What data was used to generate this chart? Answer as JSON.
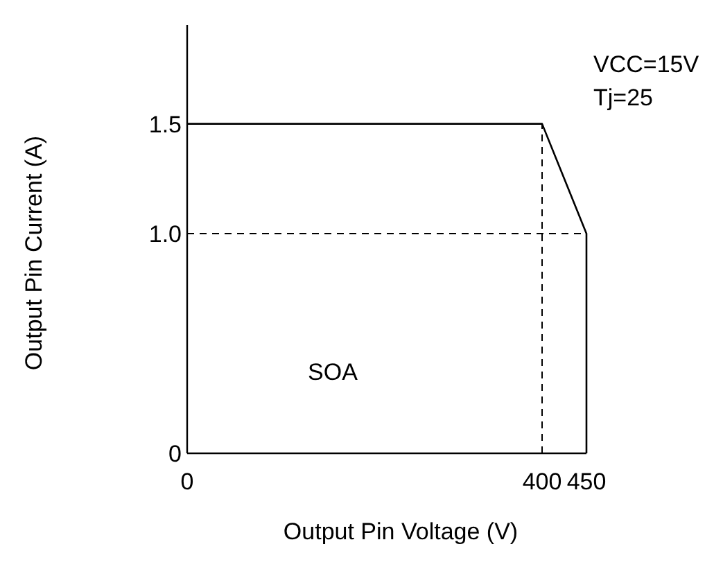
{
  "chart_data": {
    "type": "line",
    "xlabel": "Output Pin Voltage (V)",
    "ylabel": "Output Pin Current (A)",
    "x": [
      0,
      400,
      450,
      450
    ],
    "series": [
      {
        "color": "#000000",
        "values": [
          1.5,
          1.5,
          1.0,
          0
        ]
      }
    ],
    "xlim": [
      0,
      450
    ],
    "ylim": [
      0,
      1.95
    ],
    "xticks": [
      0,
      400,
      450
    ],
    "yticks": [
      0,
      {
        "value": 1,
        "label": "1.0"
      },
      1.5
    ],
    "ref_lines": [
      {
        "axis": "y",
        "value": 1,
        "line_style": "dashed",
        "color": "#000000"
      },
      {
        "axis": "x",
        "value": 400,
        "line_style": "dashed",
        "color": "#000000"
      }
    ],
    "annotations": [
      "SOA",
      "VCC=15V",
      "Tj=25"
    ],
    "line_style": "solid"
  }
}
